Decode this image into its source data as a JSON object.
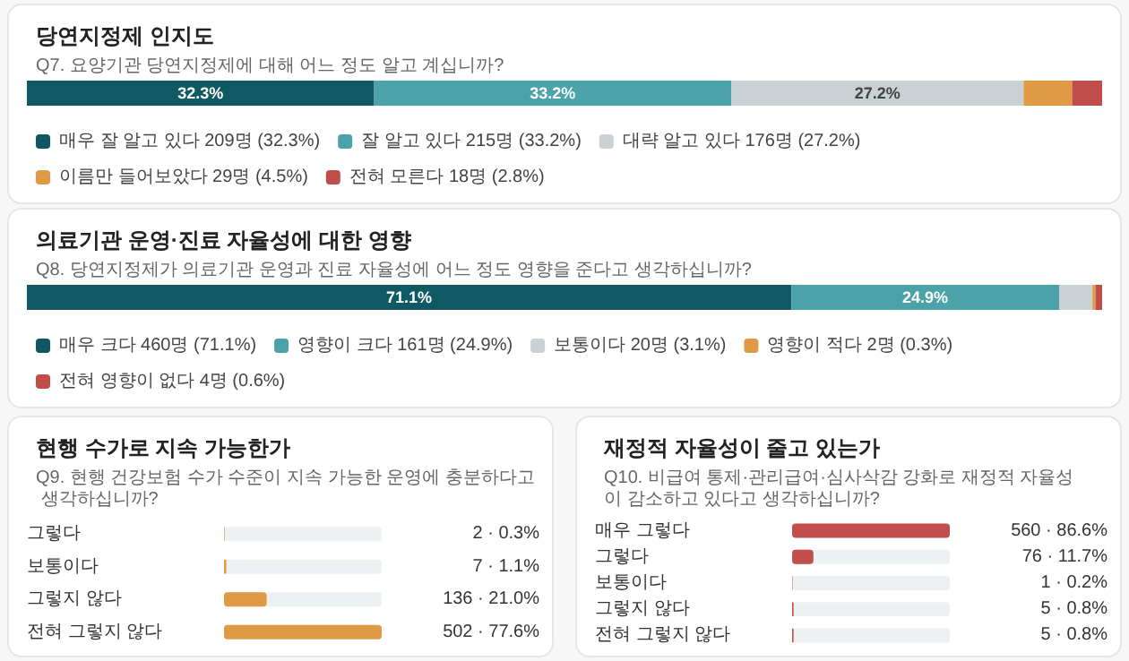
{
  "chart_data": [
    {
      "type": "bar",
      "orientation": "horizontal",
      "stacked": true,
      "title": "당연지정제 인지도",
      "subtitle": "Q7. 요양기관 당연지정제에 대해 어느 정도 알고 계십니까?",
      "categories": [
        null
      ],
      "legend": "bottom",
      "series": [
        {
          "name": "매우 잘 알고 있다 209명 (32.3%)",
          "color": "#0f5964",
          "values": [
            32.3
          ],
          "value_labels": [
            "32.3%"
          ]
        },
        {
          "name": "잘 알고 있다 215명 (33.2%)",
          "color": "#4ba3a9",
          "values": [
            33.2
          ],
          "value_labels": [
            "33.2%"
          ]
        },
        {
          "name": "대략 알고 있다 176명 (27.2%)",
          "color": "#c9d1d5",
          "values": [
            27.2
          ],
          "value_labels": [
            "27.2%"
          ]
        },
        {
          "name": "이름만 들어보았다 29명 (4.5%)",
          "color": "#e09a45",
          "values": [
            4.5
          ],
          "value_labels": [
            null
          ]
        },
        {
          "name": "전혀 모른다 18명 (2.8%)",
          "color": "#c24e4c",
          "values": [
            2.8
          ],
          "value_labels": [
            null
          ]
        }
      ]
    },
    {
      "type": "bar",
      "orientation": "horizontal",
      "stacked": true,
      "title": "의료기관 운영·진료 자율성에 대한 영향",
      "subtitle": "Q8. 당연지정제가 의료기관 운영과 진료 자율성에 어느 정도 영향을 준다고 생각하십니까?",
      "categories": [
        null
      ],
      "legend": "bottom",
      "series": [
        {
          "name": "매우 크다 460명 (71.1%)",
          "color": "#0f5964",
          "values": [
            71.1
          ],
          "value_labels": [
            "71.1%"
          ]
        },
        {
          "name": "영향이 크다 161명 (24.9%)",
          "color": "#4ba3a9",
          "values": [
            24.9
          ],
          "value_labels": [
            "24.9%"
          ]
        },
        {
          "name": "보통이다 20명 (3.1%)",
          "color": "#c9d1d5",
          "values": [
            3.1
          ],
          "value_labels": [
            null
          ]
        },
        {
          "name": "영향이 적다 2명 (0.3%)",
          "color": "#e09a45",
          "values": [
            0.3
          ],
          "value_labels": [
            null
          ]
        },
        {
          "name": "전혀 영향이 없다 4명 (0.6%)",
          "color": "#c24e4c",
          "values": [
            0.6
          ],
          "value_labels": [
            null
          ]
        }
      ]
    },
    {
      "type": "bar",
      "orientation": "horizontal",
      "title": "현행 수가로 지속 가능한가",
      "subtitle": "Q9. 현행 건강보험 수가 수준이 지속 가능한 운영에 충분하다고 생각하십니까?",
      "categories": [
        "그렇다",
        "보통이다",
        "그렇지 않다",
        "전혀 그렇지 않다"
      ],
      "color": "#e09a45",
      "values": [
        0.3,
        1.1,
        21.0,
        77.6
      ],
      "value_labels": [
        "2 · 0.3%",
        "7 · 1.1%",
        "136 · 21.0%",
        "502 · 77.6%"
      ]
    },
    {
      "type": "bar",
      "orientation": "horizontal",
      "title": "재정적 자율성이 줄고 있는가",
      "subtitle": "Q10. 비급여 통제·관리급여·심사삭감 강화로 재정적 자율성이 감소하고 있다고 생각하십니까?",
      "categories": [
        "매우 그렇다",
        "그렇다",
        "보통이다",
        "그렇지 않다",
        "전혀 그렇지 않다"
      ],
      "color": "#c24e4c",
      "values": [
        86.6,
        11.7,
        0.2,
        0.8,
        0.8
      ],
      "value_labels": [
        "560 · 86.6%",
        "76 · 11.7%",
        "1 · 0.2%",
        "5 · 0.8%",
        "5 · 0.8%"
      ]
    }
  ]
}
